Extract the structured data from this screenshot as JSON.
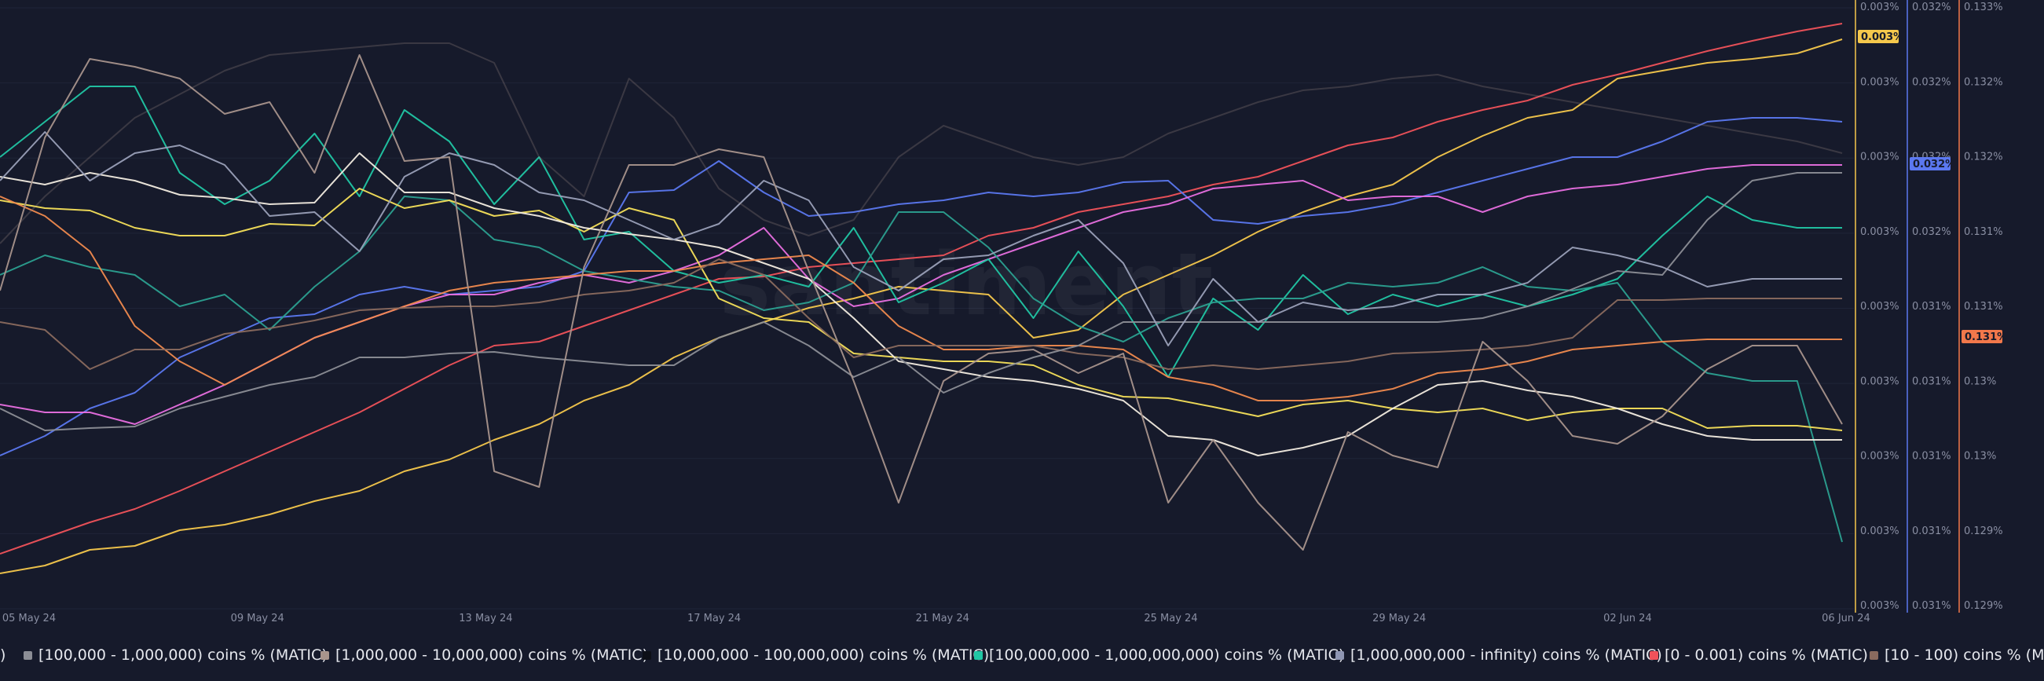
{
  "chart_data": {
    "type": "line",
    "watermark": "santiment",
    "x_labels": [
      "05 May 24",
      "09 May 24",
      "13 May 24",
      "17 May 24",
      "21 May 24",
      "25 May 24",
      "29 May 24",
      "02 Jun 24",
      "06 Jun 24"
    ],
    "axes": {
      "yellow": {
        "ticks": [
          "0.003%",
          "0.003%",
          "0.003%",
          "0.003%",
          "0.003%",
          "0.003%",
          "0.003%",
          "0.003%",
          "0.003%"
        ],
        "badge": "0.003%",
        "color": "#f5c84c"
      },
      "blue": {
        "ticks": [
          "0.032%",
          "0.032%",
          "0.032%",
          "0.032%",
          "0.031%",
          "0.031%",
          "0.031%",
          "0.031%",
          "0.031%"
        ],
        "badge": "0.032%",
        "color": "#5b78f0"
      },
      "orange": {
        "ticks": [
          "0.133%",
          "0.132%",
          "0.132%",
          "0.131%",
          "0.131%",
          "0.13%",
          "0.13%",
          "0.129%",
          "0.129%"
        ],
        "badge": "0.131%",
        "color": "#f2784b"
      }
    },
    "legend": [
      {
        "label": ")",
        "color": "#e6e8ee"
      },
      {
        "label": "[100,000  - 1,000,000) coins % (MATIC)",
        "color": "#8c8e96"
      },
      {
        "label": "[1,000,000 - 10,000,000) coins % (MATIC)",
        "color": "#a8948c"
      },
      {
        "label": "[10,000,000 - 100,000,000) coins % (MATIC)",
        "color": "#0d0f17"
      },
      {
        "label": "[100,000,000 - 1,000,000,000) coins % (MATIC)",
        "color": "#21c6a4"
      },
      {
        "label": "[1,000,000,000 - infinity) coins % (MATIC)",
        "color": "#8f96b3"
      },
      {
        "label": "[0 - 0.001) coins % (MATIC)",
        "color": "#f0525a"
      },
      {
        "label": "[10 - 100) coins % (M",
        "color": "#8a6a5e"
      }
    ],
    "series": [
      {
        "color": "#f5c84c",
        "values": [
          730,
          720,
          700,
          695,
          675,
          668,
          655,
          638,
          625,
          600,
          585,
          560,
          540,
          510,
          490,
          455,
          430,
          410,
          392,
          380,
          365,
          370,
          375,
          430,
          420,
          375,
          350,
          325,
          295,
          270,
          250,
          235,
          200,
          173,
          150,
          140,
          100,
          90,
          80,
          75,
          68,
          50
        ]
      },
      {
        "color": "#f0525a",
        "values": [
          705,
          685,
          665,
          648,
          625,
          600,
          575,
          550,
          525,
          495,
          465,
          440,
          435,
          415,
          395,
          375,
          355,
          352,
          340,
          335,
          330,
          325,
          300,
          290,
          270,
          260,
          250,
          235,
          225,
          205,
          185,
          175,
          155,
          140,
          128,
          108,
          95,
          80,
          65,
          52,
          40,
          30
        ]
      },
      {
        "color": "#5b78f0",
        "values": [
          580,
          555,
          520,
          500,
          455,
          430,
          405,
          400,
          375,
          365,
          375,
          370,
          365,
          345,
          245,
          242,
          205,
          245,
          275,
          270,
          260,
          255,
          245,
          250,
          245,
          232,
          230,
          280,
          285,
          275,
          270,
          260,
          245,
          230,
          215,
          200,
          200,
          180,
          155,
          150,
          150,
          155
        ]
      },
      {
        "color": "#e86fe0",
        "values": [
          515,
          525,
          525,
          540,
          515,
          490,
          460,
          430,
          410,
          390,
          375,
          375,
          360,
          350,
          360,
          345,
          325,
          290,
          355,
          390,
          380,
          350,
          330,
          310,
          290,
          270,
          260,
          240,
          235,
          230,
          255,
          250,
          250,
          270,
          250,
          240,
          235,
          225,
          215,
          210,
          210,
          210
        ]
      },
      {
        "color": "#21c6a4",
        "values": [
          200,
          155,
          110,
          110,
          220,
          260,
          230,
          170,
          250,
          140,
          180,
          260,
          200,
          305,
          295,
          345,
          360,
          350,
          365,
          290,
          385,
          360,
          330,
          405,
          320,
          390,
          480,
          380,
          420,
          350,
          400,
          375,
          390,
          375,
          390,
          375,
          355,
          300,
          250,
          280,
          290,
          290
        ]
      },
      {
        "color": "#2ba090",
        "values": [
          350,
          325,
          340,
          350,
          390,
          375,
          420,
          365,
          320,
          250,
          255,
          305,
          315,
          345,
          355,
          365,
          370,
          395,
          385,
          360,
          270,
          270,
          315,
          380,
          415,
          435,
          405,
          385,
          380,
          380,
          360,
          365,
          360,
          340,
          365,
          370,
          360,
          435,
          475,
          485,
          485,
          690
        ]
      },
      {
        "color": "#f5e05a",
        "values": [
          255,
          265,
          268,
          290,
          300,
          300,
          285,
          287,
          240,
          265,
          255,
          275,
          268,
          295,
          265,
          280,
          380,
          405,
          410,
          450,
          455,
          460,
          460,
          465,
          490,
          505,
          507,
          518,
          530,
          515,
          510,
          520,
          525,
          520,
          535,
          525,
          520,
          520,
          545,
          542,
          542,
          548
        ]
      },
      {
        "color": "#f2ece0",
        "values": [
          225,
          235,
          220,
          230,
          248,
          252,
          260,
          258,
          195,
          245,
          245,
          265,
          275,
          290,
          298,
          305,
          315,
          335,
          355,
          405,
          460,
          470,
          480,
          485,
          495,
          510,
          555,
          560,
          580,
          570,
          555,
          520,
          490,
          485,
          497,
          505,
          520,
          540,
          555,
          560,
          560,
          560
        ]
      },
      {
        "color": "#f08a4e",
        "values": [
          250,
          275,
          320,
          415,
          460,
          490,
          460,
          430,
          410,
          390,
          370,
          360,
          355,
          350,
          345,
          345,
          335,
          330,
          325,
          360,
          415,
          445,
          445,
          440,
          440,
          445,
          480,
          490,
          510,
          510,
          505,
          495,
          475,
          470,
          460,
          445,
          440,
          435,
          432,
          432,
          432,
          432
        ]
      },
      {
        "color": "#8a6a5e",
        "values": [
          410,
          420,
          470,
          445,
          445,
          425,
          418,
          408,
          395,
          392,
          390,
          390,
          385,
          375,
          370,
          360,
          330,
          350,
          405,
          455,
          440,
          440,
          440,
          440,
          450,
          455,
          470,
          465,
          470,
          465,
          460,
          450,
          448,
          445,
          440,
          430,
          382,
          382,
          380,
          380,
          380,
          380
        ]
      },
      {
        "color": "#8c8e96",
        "values": [
          520,
          548,
          545,
          543,
          520,
          505,
          490,
          480,
          455,
          455,
          450,
          448,
          455,
          460,
          465,
          465,
          430,
          410,
          440,
          480,
          455,
          500,
          475,
          455,
          440,
          410,
          410,
          410,
          410,
          410,
          410,
          410,
          410,
          405,
          390,
          368,
          345,
          350,
          280,
          230,
          220,
          220
        ]
      },
      {
        "color": "#9aa0b8",
        "values": [
          230,
          168,
          230,
          195,
          185,
          210,
          275,
          270,
          320,
          225,
          195,
          210,
          245,
          255,
          280,
          305,
          285,
          230,
          255,
          340,
          370,
          330,
          325,
          300,
          280,
          335,
          440,
          355,
          410,
          385,
          395,
          390,
          375,
          375,
          360,
          315,
          325,
          340,
          365,
          355,
          355,
          355
        ]
      },
      {
        "color": "#a8948c",
        "values": [
          370,
          175,
          75,
          85,
          100,
          145,
          130,
          220,
          70,
          205,
          200,
          600,
          620,
          340,
          210,
          210,
          190,
          200,
          345,
          485,
          640,
          485,
          450,
          445,
          475,
          450,
          640,
          560,
          640,
          700,
          550,
          580,
          595,
          435,
          485,
          555,
          565,
          530,
          470,
          440,
          440,
          540
        ]
      },
      {
        "color": "#a8948c",
        "values": [
          310,
          250,
          200,
          150,
          120,
          90,
          70,
          65,
          60,
          55,
          55,
          80,
          200,
          250,
          100,
          150,
          240,
          280,
          300,
          280,
          200,
          160,
          180,
          200,
          210,
          200,
          170,
          150,
          130,
          115,
          110,
          100,
          95,
          110,
          120,
          130,
          140,
          150,
          160,
          170,
          180,
          195
        ]
      }
    ]
  }
}
